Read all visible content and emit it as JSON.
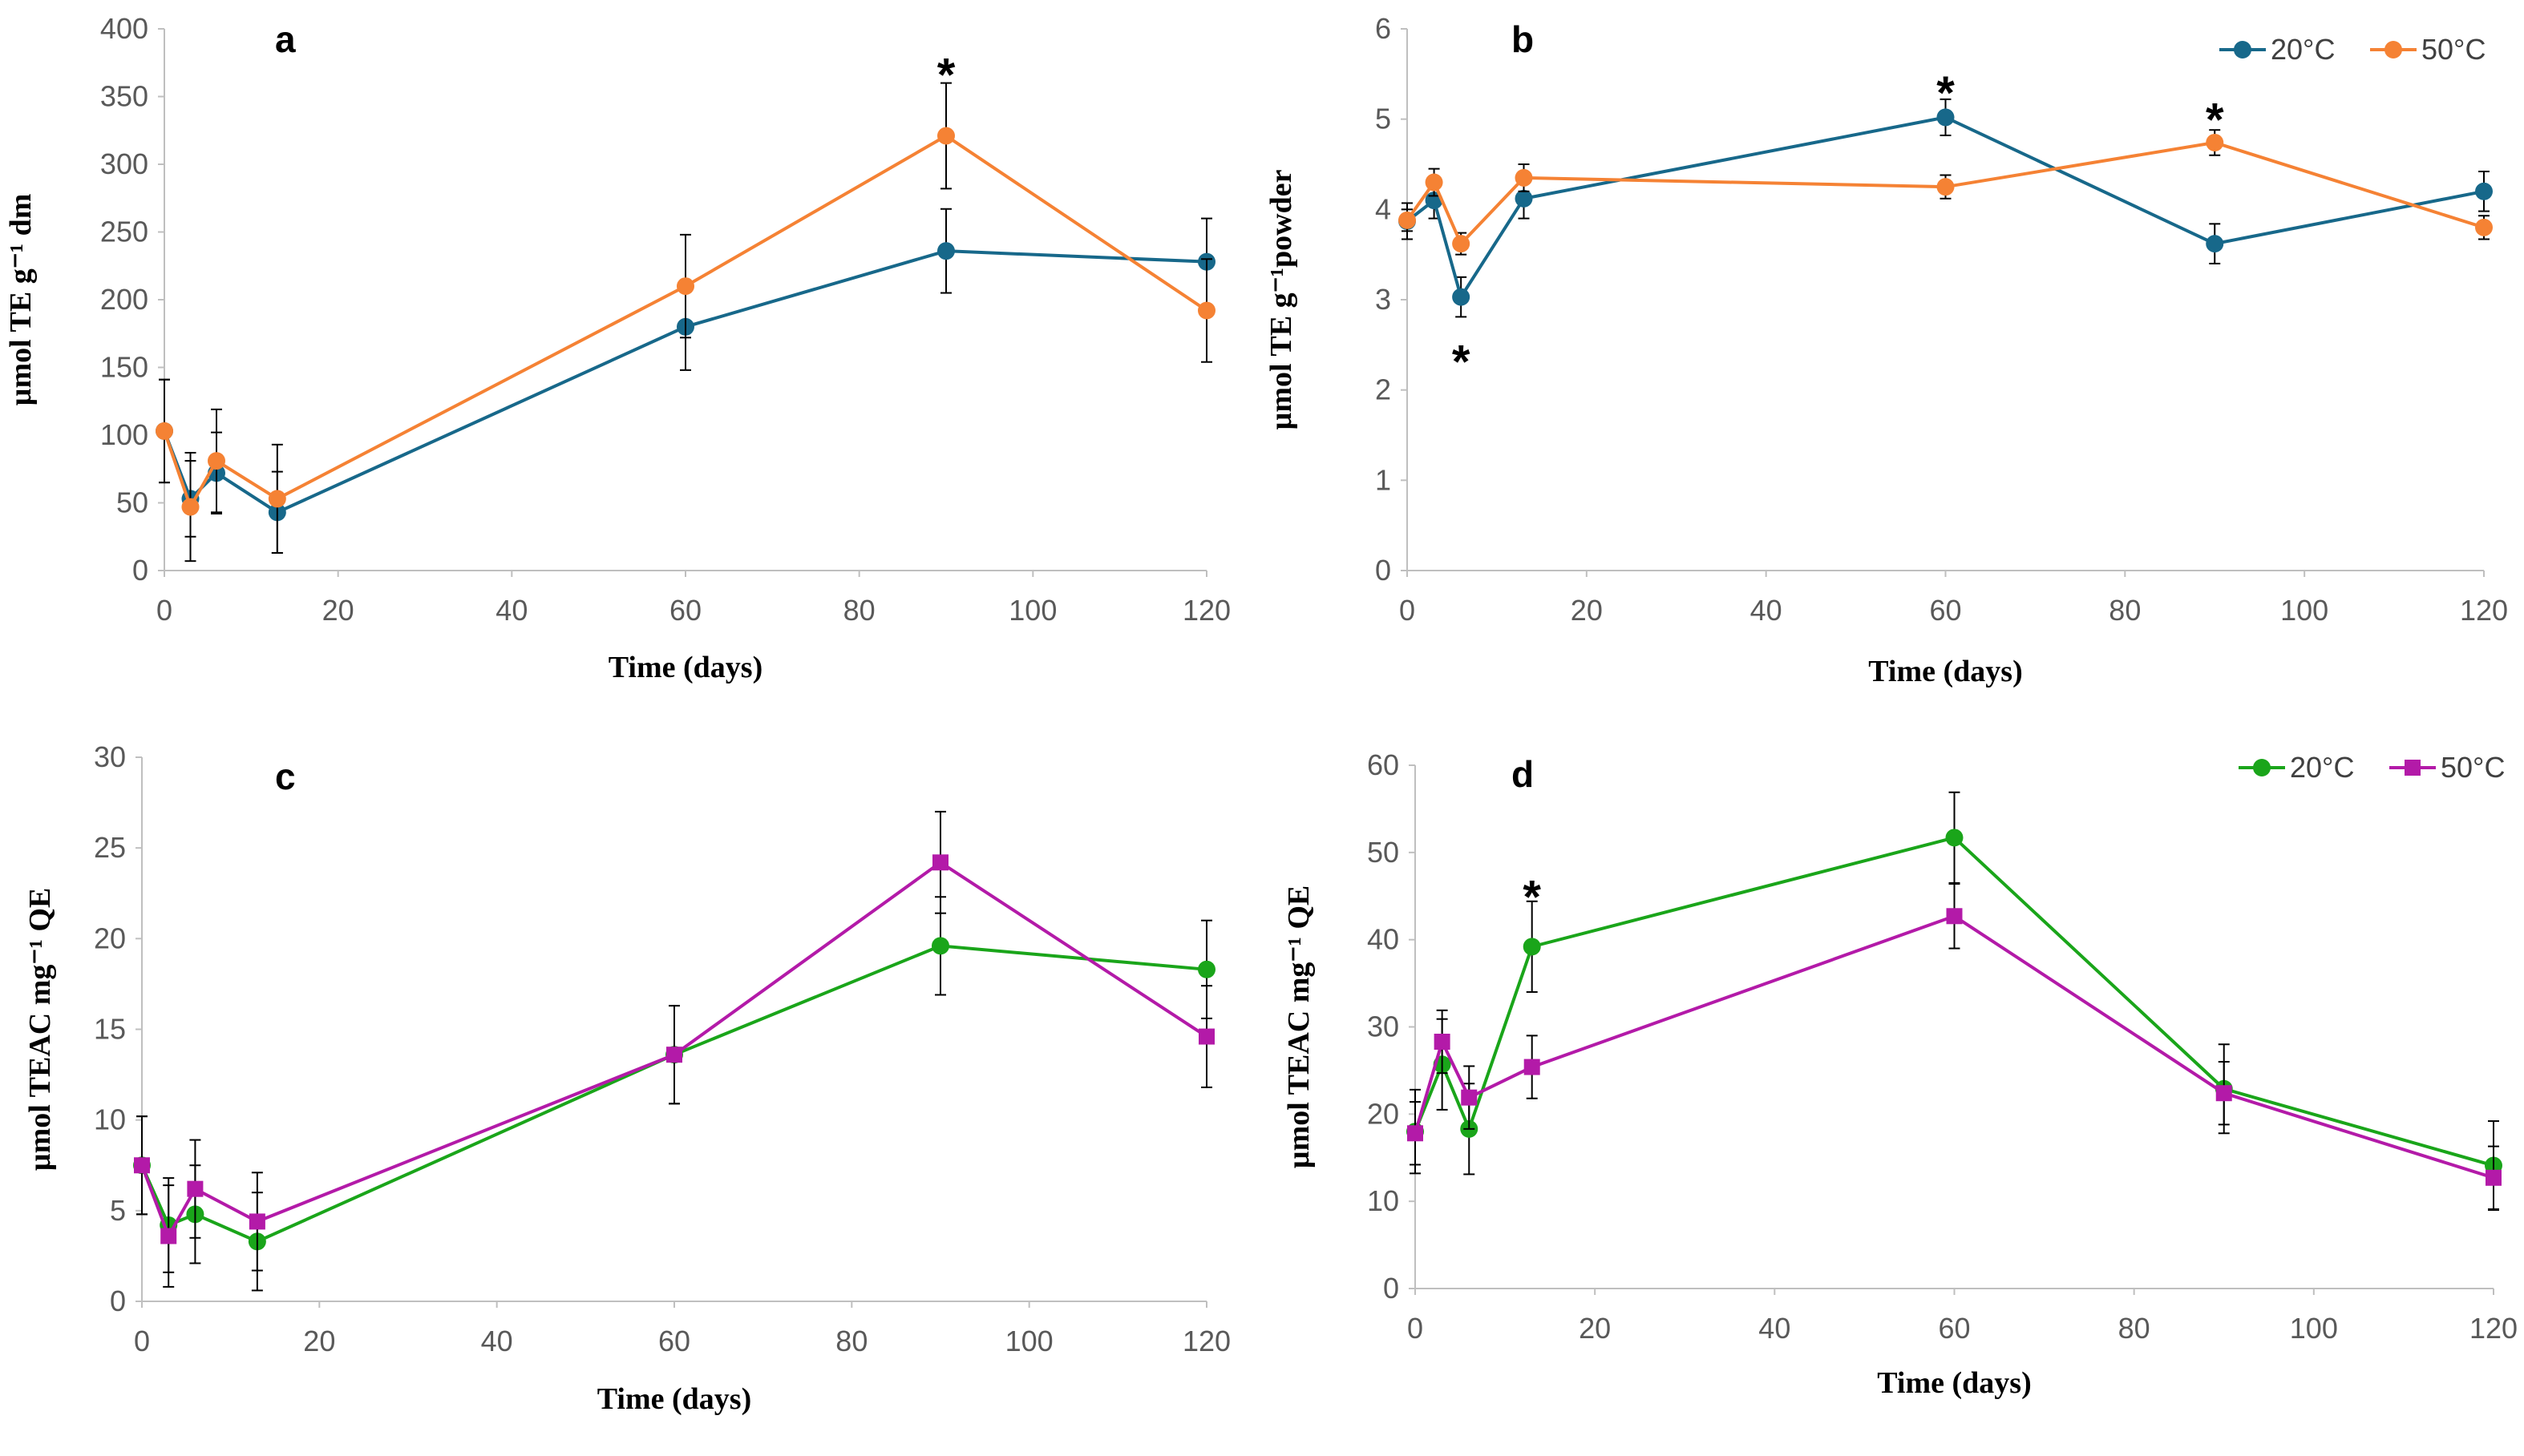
{
  "chart_data": [
    {
      "type": "line",
      "panel": "a",
      "title": "",
      "xlabel": "Time (days)",
      "ylabel": "µmol TE g⁻¹ dm",
      "xlim": [
        0,
        120
      ],
      "ylim": [
        0,
        400
      ],
      "x_ticks": [
        0,
        20,
        40,
        60,
        80,
        100,
        120
      ],
      "y_ticks": [
        0,
        50,
        100,
        150,
        200,
        250,
        300,
        350,
        400
      ],
      "x": [
        0,
        3,
        6,
        13,
        60,
        90,
        120
      ],
      "legend": "none",
      "series": [
        {
          "name": "20°C",
          "color": "#17688a",
          "marker": "circle",
          "values": [
            103,
            53,
            72,
            43,
            180,
            236,
            228
          ],
          "errors": [
            38,
            28,
            30,
            30,
            32,
            31,
            32
          ]
        },
        {
          "name": "50°C",
          "color": "#f58234",
          "marker": "circle",
          "values": [
            103,
            47,
            81,
            53,
            210,
            321,
            192
          ],
          "errors": [
            38,
            40,
            38,
            40,
            38,
            39,
            38
          ]
        }
      ],
      "annotations": [
        {
          "text": "*",
          "x": 90,
          "y": 372
        }
      ]
    },
    {
      "type": "line",
      "panel": "b",
      "title": "",
      "xlabel": "Time (days)",
      "ylabel": "µmol TE g⁻¹powder",
      "xlim": [
        0,
        120
      ],
      "ylim": [
        0,
        6
      ],
      "x_ticks": [
        0,
        20,
        40,
        60,
        80,
        100,
        120
      ],
      "y_ticks": [
        0,
        1,
        2,
        3,
        4,
        5,
        6
      ],
      "x": [
        0,
        3,
        6,
        13,
        60,
        90,
        120
      ],
      "legend": "top-right",
      "series": [
        {
          "name": "20°C",
          "color": "#17688a",
          "marker": "circle",
          "values": [
            3.87,
            4.1,
            3.03,
            4.12,
            5.02,
            3.62,
            4.2
          ],
          "errors": [
            0.2,
            0.2,
            0.22,
            0.22,
            0.2,
            0.22,
            0.22
          ]
        },
        {
          "name": "50°C",
          "color": "#f58234",
          "marker": "circle",
          "values": [
            3.88,
            4.3,
            3.62,
            4.35,
            4.25,
            4.74,
            3.8
          ],
          "errors": [
            0.12,
            0.15,
            0.12,
            0.15,
            0.13,
            0.14,
            0.13
          ]
        }
      ],
      "annotations": [
        {
          "text": "*",
          "x": 6,
          "y": 2.4
        },
        {
          "text": "*",
          "x": 60,
          "y": 5.38
        },
        {
          "text": "*",
          "x": 90,
          "y": 5.08
        }
      ]
    },
    {
      "type": "line",
      "panel": "c",
      "title": "",
      "xlabel": "Time (days)",
      "ylabel": "µmol TEAC mg⁻¹ QE",
      "xlim": [
        0,
        120
      ],
      "ylim": [
        0,
        30
      ],
      "x_ticks": [
        0,
        20,
        40,
        60,
        80,
        100,
        120
      ],
      "y_ticks": [
        0,
        5,
        10,
        15,
        20,
        25,
        30
      ],
      "x": [
        0,
        3,
        6,
        13,
        60,
        90,
        120
      ],
      "legend": "none",
      "series": [
        {
          "name": "20°C",
          "color": "#1aa51a",
          "marker": "circle",
          "values": [
            7.5,
            4.2,
            4.8,
            3.3,
            13.6,
            19.6,
            18.3
          ],
          "errors": [
            2.7,
            2.6,
            2.7,
            2.7,
            2.7,
            2.7,
            2.7
          ]
        },
        {
          "name": "50°C",
          "color": "#b31aa8",
          "marker": "square",
          "values": [
            7.5,
            3.6,
            6.2,
            4.4,
            13.6,
            24.2,
            14.6
          ],
          "errors": [
            2.7,
            2.8,
            2.7,
            2.7,
            2.7,
            2.8,
            2.8
          ]
        }
      ],
      "annotations": []
    },
    {
      "type": "line",
      "panel": "d",
      "title": "",
      "xlabel": "Time (days)",
      "ylabel": "µmol TEAC mg⁻¹ QE",
      "xlim": [
        0,
        120
      ],
      "ylim": [
        0,
        60
      ],
      "x_ticks": [
        0,
        20,
        40,
        60,
        80,
        100,
        120
      ],
      "y_ticks": [
        0,
        10,
        20,
        30,
        40,
        50,
        60
      ],
      "x": [
        0,
        3,
        6,
        13,
        60,
        90,
        120
      ],
      "legend": "top-right",
      "series": [
        {
          "name": "20°C",
          "color": "#1aa51a",
          "marker": "circle",
          "values": [
            18,
            25.7,
            18.3,
            39.2,
            51.7,
            22.9,
            14.1
          ],
          "errors": [
            4.8,
            5.2,
            5.2,
            5.2,
            5.2,
            5.1,
            5.1
          ]
        },
        {
          "name": "50°C",
          "color": "#b31aa8",
          "marker": "square",
          "values": [
            17.8,
            28.3,
            21.9,
            25.4,
            42.7,
            22.4,
            12.7
          ],
          "errors": [
            3.6,
            3.6,
            3.6,
            3.6,
            3.7,
            3.6,
            3.6
          ]
        }
      ],
      "annotations": [
        {
          "text": "*",
          "x": 13,
          "y": 45.8
        }
      ]
    }
  ]
}
